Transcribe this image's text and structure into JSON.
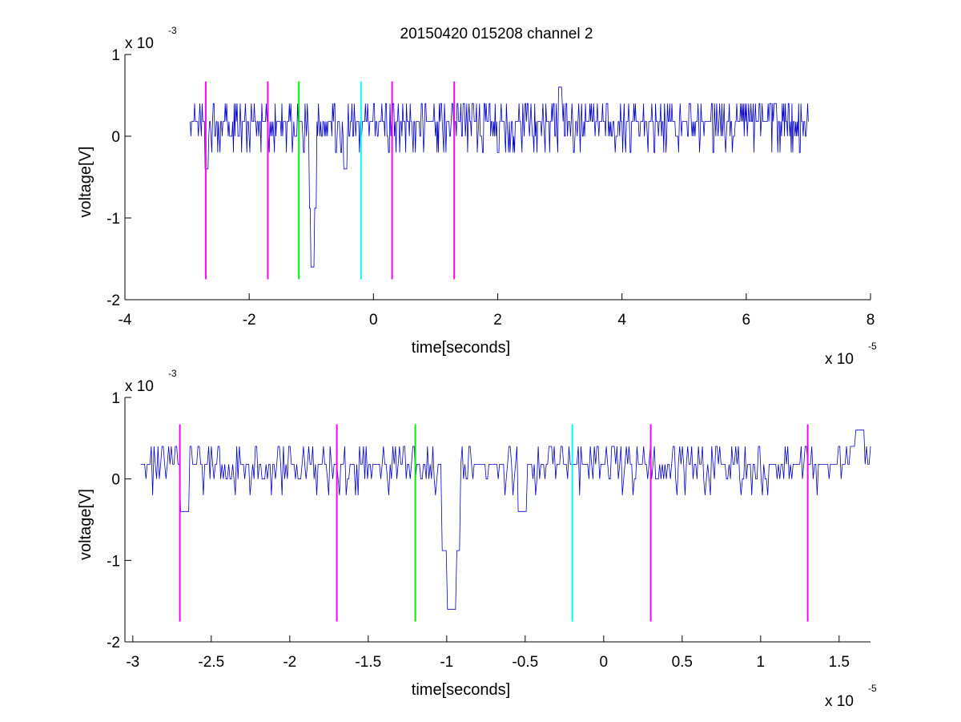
{
  "figure": {
    "title": "20150420 015208 channel 2"
  },
  "colors": {
    "signal": "#0000cc",
    "marker_magenta": "#ff00ff",
    "marker_green": "#00ee00",
    "marker_cyan": "#00ffff",
    "axis": "#000000"
  },
  "chart_data": [
    {
      "type": "line",
      "title": "20150420 015208 channel 2",
      "xlabel": "time[seconds]",
      "ylabel": "voltage[V]",
      "x_exponent_label": "x 10",
      "x_exponent": "-5",
      "y_exponent_label": "x 10",
      "y_exponent": "-3",
      "xlim": [
        -4,
        8
      ],
      "ylim": [
        -2,
        1
      ],
      "xticks": [
        -4,
        -2,
        0,
        2,
        4,
        6,
        8
      ],
      "xtick_labels": [
        "-4",
        "-2",
        "0",
        "2",
        "4",
        "6",
        "8"
      ],
      "yticks": [
        -2,
        -1,
        0,
        1
      ],
      "ytick_labels": [
        "-2",
        "-1",
        "0",
        "1"
      ],
      "grid": false,
      "series": [
        {
          "x_range": [
            -2.95,
            7.0
          ],
          "baseline": 0.18,
          "noise_levels": [
            -0.2,
            0,
            0.2,
            0.4
          ],
          "spikes": [
            {
              "x": -2.68,
              "y": -0.4
            },
            {
              "x": -0.98,
              "y": -1.6
            },
            {
              "x": -0.45,
              "y": -0.4
            },
            {
              "x": 3.0,
              "y": 0.6
            }
          ]
        }
      ],
      "markers": [
        {
          "x": -2.7,
          "color": "magenta",
          "ymin": -1.75,
          "ymax": 0.67
        },
        {
          "x": -1.7,
          "color": "magenta",
          "ymin": -1.75,
          "ymax": 0.67
        },
        {
          "x": -1.2,
          "color": "green",
          "ymin": -1.75,
          "ymax": 0.67
        },
        {
          "x": -0.2,
          "color": "cyan",
          "ymin": -1.75,
          "ymax": 0.67
        },
        {
          "x": 0.3,
          "color": "magenta",
          "ymin": -1.75,
          "ymax": 0.67
        },
        {
          "x": 1.3,
          "color": "magenta",
          "ymin": -1.75,
          "ymax": 0.67
        }
      ]
    },
    {
      "type": "line",
      "xlabel": "time[seconds]",
      "ylabel": "voltage[V]",
      "x_exponent_label": "x 10",
      "x_exponent": "-5",
      "y_exponent_label": "x 10",
      "y_exponent": "-3",
      "xlim": [
        -3.05,
        1.7
      ],
      "ylim": [
        -2,
        1
      ],
      "xticks": [
        -3,
        -2.5,
        -2,
        -1.5,
        -1,
        -0.5,
        0,
        0.5,
        1,
        1.5
      ],
      "xtick_labels": [
        "-3",
        "-2.5",
        "-2",
        "-1.5",
        "-1",
        "-0.5",
        "0",
        "0.5",
        "1",
        "1.5"
      ],
      "yticks": [
        -2,
        -1,
        0,
        1
      ],
      "ytick_labels": [
        "-2",
        "-1",
        "0",
        "1"
      ],
      "grid": false,
      "series": [
        {
          "x_range": [
            -2.95,
            1.7
          ],
          "baseline": 0.18,
          "noise_levels": [
            -0.2,
            0,
            0.2,
            0.4
          ],
          "spikes": [
            {
              "x": -2.67,
              "y": -0.4
            },
            {
              "x": -0.97,
              "y": -1.6
            },
            {
              "x": -0.52,
              "y": -0.4
            },
            {
              "x": 1.63,
              "y": 0.6
            }
          ]
        }
      ],
      "markers": [
        {
          "x": -2.7,
          "color": "magenta",
          "ymin": -1.75,
          "ymax": 0.67
        },
        {
          "x": -1.7,
          "color": "magenta",
          "ymin": -1.75,
          "ymax": 0.67
        },
        {
          "x": -1.2,
          "color": "green",
          "ymin": -1.75,
          "ymax": 0.67
        },
        {
          "x": -0.2,
          "color": "cyan",
          "ymin": -1.75,
          "ymax": 0.67
        },
        {
          "x": 0.3,
          "color": "magenta",
          "ymin": -1.75,
          "ymax": 0.67
        },
        {
          "x": 1.3,
          "color": "magenta",
          "ymin": -1.75,
          "ymax": 0.67
        }
      ]
    }
  ]
}
